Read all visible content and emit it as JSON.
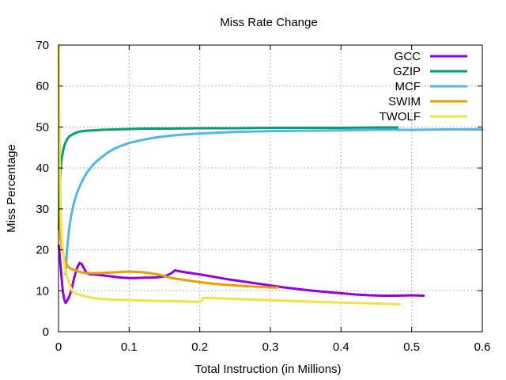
{
  "chart_data": {
    "type": "line",
    "title": "Miss Rate Change",
    "xlabel": "Total Instruction (in Millions)",
    "ylabel": "Miss Percentage",
    "xlim": [
      0,
      0.6
    ],
    "ylim": [
      0,
      70
    ],
    "xticks": [
      0,
      0.1,
      0.2,
      0.3,
      0.4,
      0.5,
      0.6
    ],
    "xtick_labels": [
      "0",
      "0.1",
      "0.2",
      "0.3",
      "0.4",
      "0.5",
      "0.6"
    ],
    "yticks": [
      0,
      10,
      20,
      30,
      40,
      50,
      60,
      70
    ],
    "ytick_labels": [
      "0",
      "10",
      "20",
      "30",
      "40",
      "50",
      "60",
      "70"
    ],
    "grid": true,
    "legend_position": "top-right",
    "series": [
      {
        "name": "GCC",
        "color": "#9400d3",
        "x": [
          0.0005,
          0.002,
          0.004,
          0.006,
          0.008,
          0.01,
          0.012,
          0.015,
          0.018,
          0.022,
          0.026,
          0.03,
          0.033,
          0.036,
          0.04,
          0.045,
          0.05,
          0.06,
          0.07,
          0.08,
          0.09,
          0.1,
          0.11,
          0.12,
          0.13,
          0.14,
          0.15,
          0.16,
          0.165,
          0.17,
          0.18,
          0.2,
          0.22,
          0.24,
          0.26,
          0.28,
          0.3,
          0.32,
          0.34,
          0.36,
          0.38,
          0.4,
          0.42,
          0.44,
          0.46,
          0.48,
          0.5,
          0.517
        ],
        "y": [
          21,
          18,
          14,
          10,
          8,
          7,
          7.5,
          8.5,
          10,
          13,
          15.5,
          16.8,
          16.5,
          15.5,
          14.3,
          14,
          14,
          13.8,
          13.6,
          13.4,
          13.2,
          13.1,
          13.1,
          13.2,
          13.2,
          13.3,
          13.5,
          14.3,
          15,
          14.8,
          14.5,
          14,
          13.4,
          12.8,
          12.3,
          11.8,
          11.3,
          10.8,
          10.4,
          10,
          9.7,
          9.4,
          9.1,
          8.9,
          8.8,
          8.8,
          8.9,
          8.8
        ]
      },
      {
        "name": "GZIP",
        "color": "#009e73",
        "x": [
          0.0005,
          0.001,
          0.002,
          0.003,
          0.004,
          0.006,
          0.008,
          0.01,
          0.013,
          0.016,
          0.02,
          0.025,
          0.03,
          0.04,
          0.05,
          0.06,
          0.08,
          0.1,
          0.12,
          0.15,
          0.2,
          0.25,
          0.3,
          0.35,
          0.4,
          0.45,
          0.48
        ],
        "y": [
          25,
          30,
          36,
          39.5,
          41.5,
          43.8,
          45.3,
          46.3,
          47.2,
          47.8,
          48.2,
          48.6,
          48.9,
          49.1,
          49.2,
          49.3,
          49.4,
          49.5,
          49.6,
          49.6,
          49.7,
          49.7,
          49.8,
          49.8,
          49.8,
          49.9,
          49.9
        ]
      },
      {
        "name": "MCF",
        "color": "#56b4e9",
        "x": [
          0.01,
          0.012,
          0.015,
          0.018,
          0.022,
          0.026,
          0.03,
          0.035,
          0.04,
          0.05,
          0.06,
          0.07,
          0.08,
          0.09,
          0.1,
          0.12,
          0.14,
          0.16,
          0.18,
          0.2,
          0.25,
          0.3,
          0.35,
          0.4,
          0.45,
          0.5,
          0.55,
          0.6
        ],
        "y": [
          14,
          20,
          25,
          28.5,
          31.5,
          33.8,
          35.5,
          37.3,
          38.8,
          41,
          42.5,
          43.8,
          44.8,
          45.5,
          46.1,
          46.9,
          47.5,
          47.9,
          48.2,
          48.4,
          48.8,
          49,
          49.1,
          49.2,
          49.3,
          49.3,
          49.4,
          49.4
        ]
      },
      {
        "name": "SWIM",
        "color": "#e69f00",
        "x": [
          0.001,
          0.003,
          0.005,
          0.008,
          0.01,
          0.013,
          0.016,
          0.02,
          0.025,
          0.03,
          0.035,
          0.04,
          0.05,
          0.06,
          0.07,
          0.08,
          0.09,
          0.1,
          0.11,
          0.12,
          0.13,
          0.14,
          0.15,
          0.16,
          0.18,
          0.2,
          0.22,
          0.24,
          0.26,
          0.28,
          0.3,
          0.31
        ],
        "y": [
          29,
          23,
          20,
          18,
          17,
          16,
          15.5,
          15.2,
          14.9,
          14.6,
          14.4,
          14.3,
          14.3,
          14.3,
          14.4,
          14.5,
          14.6,
          14.7,
          14.6,
          14.5,
          14.3,
          14,
          13.6,
          13.1,
          12.6,
          12.1,
          11.7,
          11.4,
          11.2,
          11,
          10.8,
          10.8
        ]
      },
      {
        "name": "TWOLF",
        "color": "#f0e442",
        "x": [
          0.0005,
          0.001,
          0.002,
          0.003,
          0.004,
          0.006,
          0.008,
          0.01,
          0.012,
          0.015,
          0.018,
          0.02,
          0.025,
          0.03,
          0.04,
          0.05,
          0.06,
          0.08,
          0.1,
          0.12,
          0.15,
          0.18,
          0.2,
          0.202,
          0.205,
          0.21,
          0.25,
          0.3,
          0.35,
          0.4,
          0.45,
          0.483
        ],
        "y": [
          70,
          55,
          40,
          30,
          25,
          20,
          17,
          15,
          13.5,
          12,
          10.5,
          9.7,
          9.3,
          9,
          8.6,
          8.2,
          8,
          7.8,
          7.7,
          7.6,
          7.5,
          7.4,
          7.3,
          7.6,
          8.2,
          8.3,
          8,
          7.7,
          7.4,
          7.1,
          6.9,
          6.7
        ]
      }
    ]
  }
}
